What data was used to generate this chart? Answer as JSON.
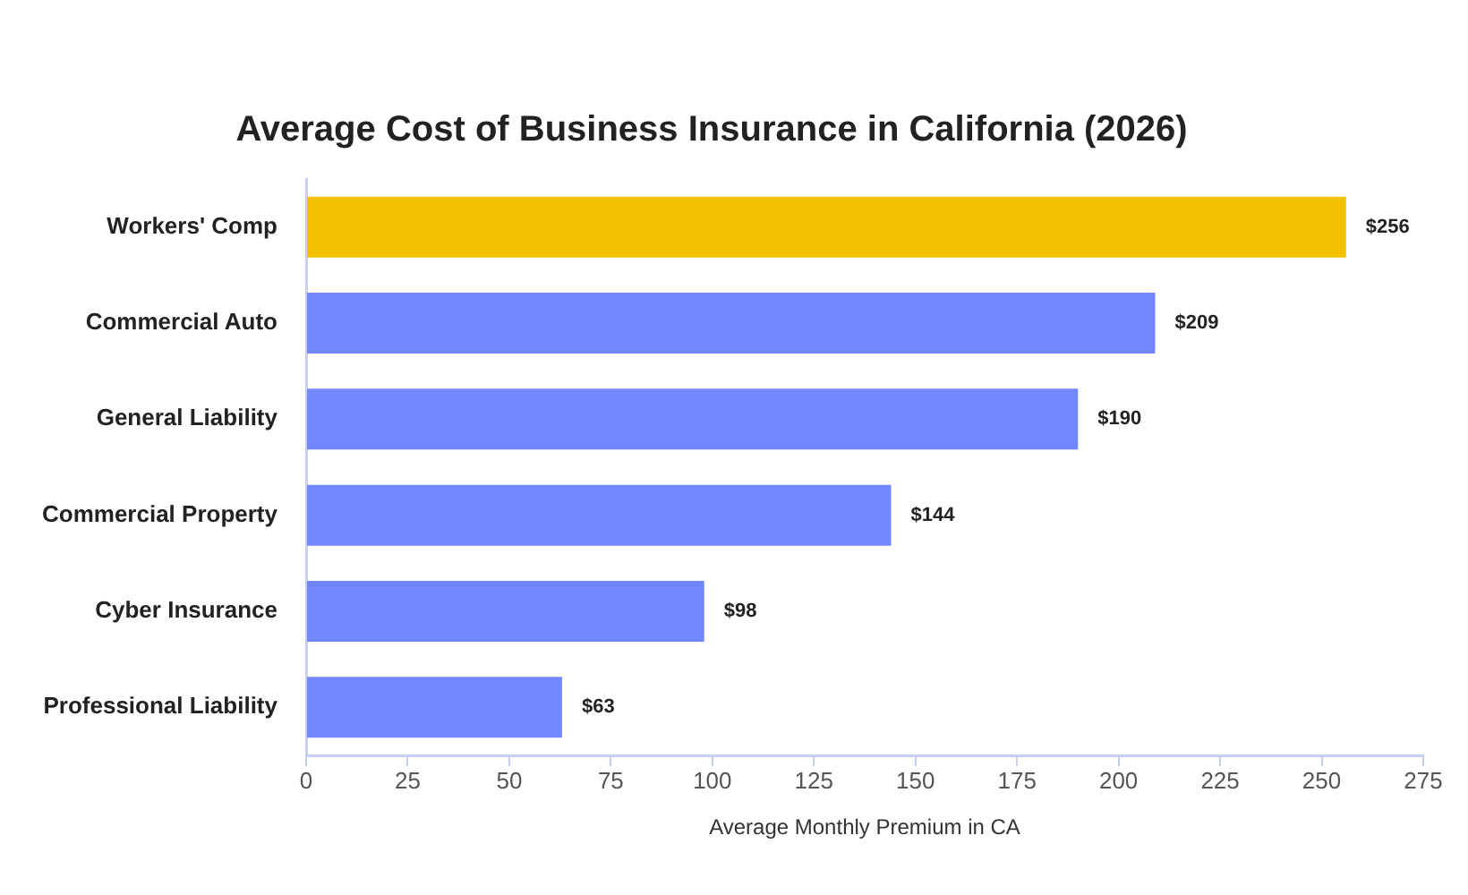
{
  "chart_data": {
    "type": "bar",
    "orientation": "horizontal",
    "title": "Average Cost of Business Insurance in California (2026)",
    "xlabel": "Average Monthly Premium in CA",
    "categories": [
      "Workers' Comp",
      "Commercial Auto",
      "General Liability",
      "Commercial Property",
      "Cyber Insurance",
      "Professional Liability"
    ],
    "values": [
      256,
      209,
      190,
      144,
      98,
      63
    ],
    "colors": [
      "#f2c200",
      "#7287fd",
      "#7287fd",
      "#7287fd",
      "#7287fd",
      "#7287fd"
    ],
    "value_labels": [
      "$256",
      "$209",
      "$190",
      "$144",
      "$98",
      "$63"
    ],
    "xlim": [
      0,
      275
    ],
    "xticks": [
      0,
      25,
      50,
      75,
      100,
      125,
      150,
      175,
      200,
      225,
      250,
      275
    ],
    "legend": false
  }
}
